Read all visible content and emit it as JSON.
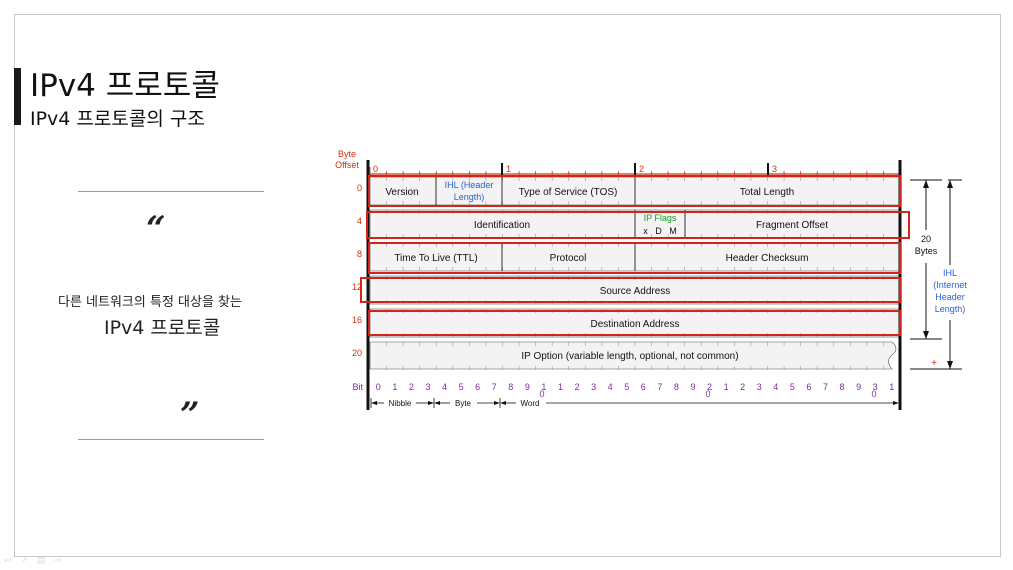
{
  "header": {
    "title": "IPv4 프로토콜",
    "subtitle": "IPv4 프로토콜의 구조"
  },
  "quote": {
    "open_mark": "“",
    "close_mark": "”",
    "line1": "다른 네트워크의 특정 대상을 찾는",
    "line2": "IPv4 프로토콜"
  },
  "nav": {
    "icons": "↩ ↗ ▤ ⇨"
  },
  "diagram": {
    "byte_offset_label": [
      "Byte",
      "Offset"
    ],
    "row_offsets": [
      "0",
      "4",
      "8",
      "12",
      "16",
      "20"
    ],
    "top_ruler": [
      "0",
      "1",
      "2",
      "3"
    ],
    "fields": {
      "version": "Version",
      "ihl": [
        "IHL (Header",
        "Length)"
      ],
      "tos": "Type of Service (TOS)",
      "total_length": "Total Length",
      "identification": "Identification",
      "ip_flags": "IP Flags",
      "flag_bits": "x   D   M",
      "fragment_offset": "Fragment Offset",
      "ttl": "Time To Live (TTL)",
      "protocol": "Protocol",
      "checksum": "Header Checksum",
      "source": "Source Address",
      "destination": "Destination Address",
      "options": "IP Option (variable length, optional, not common)"
    },
    "twenty_bytes": [
      "20",
      "Bytes"
    ],
    "ihl_right": [
      "IHL",
      "(Internet",
      "Header",
      "Length)"
    ],
    "plus": "+",
    "bit_label": "Bit",
    "bit_numbers": [
      "0",
      "1",
      "2",
      "3",
      "4",
      "5",
      "6",
      "7",
      "8",
      "9",
      "1",
      "1",
      "2",
      "3",
      "4",
      "5",
      "6",
      "7",
      "8",
      "9",
      "2",
      "1",
      "2",
      "3",
      "4",
      "5",
      "6",
      "7",
      "8",
      "9",
      "3",
      "1"
    ],
    "bit_subs": [
      "0",
      "0",
      "0"
    ],
    "nibble": "Nibble",
    "byte": "Byte",
    "word": "Word",
    "colors": {
      "offset": "#d03010",
      "blue": "#2a5fd0",
      "green": "#1d9b2a",
      "purple": "#7a2d9c",
      "highlight": "#d4241a"
    }
  }
}
